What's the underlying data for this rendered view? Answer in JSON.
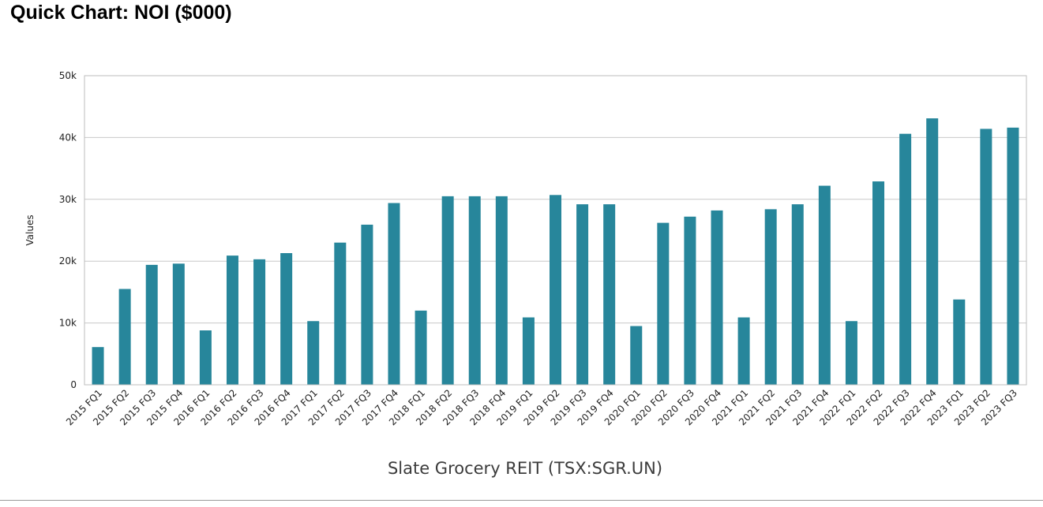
{
  "header": {
    "title": "Quick Chart: NOI ($000)"
  },
  "colors": {
    "bar": "#27869b",
    "grid": "#c8c8c8",
    "frame": "#bdbdbd"
  },
  "chart_data": {
    "type": "bar",
    "title": "Quick Chart: NOI ($000)",
    "xlabel": "Slate Grocery REIT (TSX:SGR.UN)",
    "ylabel": "Values",
    "ylim": [
      0,
      50000
    ],
    "yticks": [
      0,
      10000,
      20000,
      30000,
      40000,
      50000
    ],
    "ytick_labels": [
      "0",
      "10k",
      "20k",
      "30k",
      "40k",
      "50k"
    ],
    "grid": true,
    "legend": "none",
    "categories": [
      "2015 FQ1",
      "2015 FQ2",
      "2015 FQ3",
      "2015 FQ4",
      "2016 FQ1",
      "2016 FQ2",
      "2016 FQ3",
      "2016 FQ4",
      "2017 FQ1",
      "2017 FQ2",
      "2017 FQ3",
      "2017 FQ4",
      "2018 FQ1",
      "2018 FQ2",
      "2018 FQ3",
      "2018 FQ4",
      "2019 FQ1",
      "2019 FQ2",
      "2019 FQ3",
      "2019 FQ4",
      "2020 FQ1",
      "2020 FQ2",
      "2020 FQ3",
      "2020 FQ4",
      "2021 FQ1",
      "2021 FQ2",
      "2021 FQ3",
      "2021 FQ4",
      "2022 FQ1",
      "2022 FQ2",
      "2022 FQ3",
      "2022 FQ4",
      "2023 FQ1",
      "2023 FQ2",
      "2023 FQ3"
    ],
    "values": [
      6100,
      15500,
      19400,
      19600,
      8800,
      20900,
      20300,
      21300,
      10300,
      23000,
      25900,
      29400,
      12000,
      30500,
      30500,
      30500,
      10900,
      30700,
      29200,
      29200,
      9500,
      26200,
      27200,
      28200,
      10900,
      28400,
      29200,
      32200,
      10300,
      32900,
      40600,
      43100,
      13800,
      41400,
      41600
    ]
  }
}
